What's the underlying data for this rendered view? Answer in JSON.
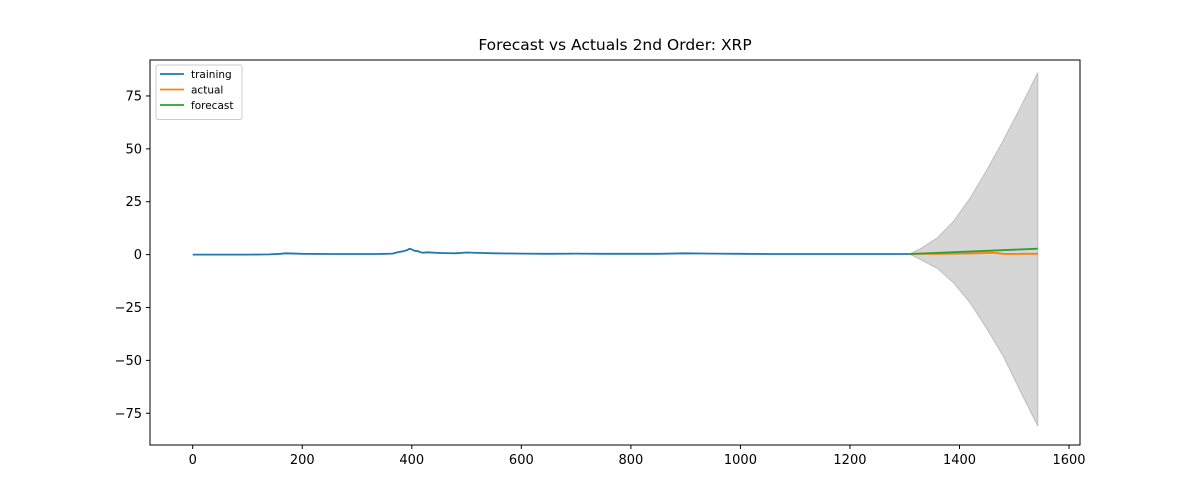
{
  "chart_data": {
    "type": "line",
    "title": "Forecast vs Actuals 2nd Order: XRP",
    "xlabel": "",
    "ylabel": "",
    "xlim": [
      -78,
      1620
    ],
    "ylim": [
      -90,
      92
    ],
    "xticks": [
      0,
      200,
      400,
      600,
      800,
      1000,
      1200,
      1400,
      1600
    ],
    "yticks": [
      -75,
      -50,
      -25,
      0,
      25,
      50,
      75
    ],
    "grid": false,
    "legend_position": "top-left",
    "series": [
      {
        "name": "training",
        "color": "#1f77b4",
        "x": [
          0,
          50,
          100,
          140,
          160,
          170,
          200,
          250,
          300,
          340,
          365,
          375,
          385,
          392,
          396,
          400,
          405,
          410,
          415,
          420,
          430,
          440,
          460,
          480,
          500,
          520,
          550,
          600,
          650,
          700,
          750,
          800,
          850,
          900,
          950,
          1000,
          1050,
          1100,
          1150,
          1200,
          1250,
          1309
        ],
        "y": [
          0.0,
          0.0,
          0.0,
          0.1,
          0.4,
          0.6,
          0.4,
          0.3,
          0.3,
          0.3,
          0.5,
          1.2,
          1.6,
          2.2,
          2.8,
          2.4,
          1.8,
          1.7,
          1.2,
          0.9,
          1.1,
          0.9,
          0.7,
          0.6,
          1.0,
          0.8,
          0.6,
          0.5,
          0.4,
          0.5,
          0.4,
          0.4,
          0.4,
          0.6,
          0.5,
          0.4,
          0.3,
          0.3,
          0.3,
          0.3,
          0.3,
          0.3
        ]
      },
      {
        "name": "actual",
        "color": "#ff7f0e",
        "x": [
          1309,
          1340,
          1370,
          1400,
          1430,
          1460,
          1480,
          1500,
          1520,
          1543
        ],
        "y": [
          0.3,
          0.4,
          0.4,
          0.5,
          0.6,
          0.9,
          0.4,
          0.3,
          0.4,
          0.4
        ]
      },
      {
        "name": "forecast",
        "color": "#2ca02c",
        "x": [
          1309,
          1543
        ],
        "y": [
          0.3,
          2.8
        ]
      }
    ],
    "confidence_band": {
      "color": "#d6d6d6",
      "edge_color": "#bdbdbd",
      "x": [
        1309,
        1330,
        1360,
        1390,
        1420,
        1450,
        1480,
        1510,
        1543
      ],
      "upper": [
        0.3,
        3,
        8,
        16,
        27,
        40,
        54,
        69,
        86
      ],
      "lower": [
        0.3,
        -2.5,
        -6.5,
        -13.5,
        -23,
        -35,
        -48,
        -64,
        -81
      ]
    }
  }
}
